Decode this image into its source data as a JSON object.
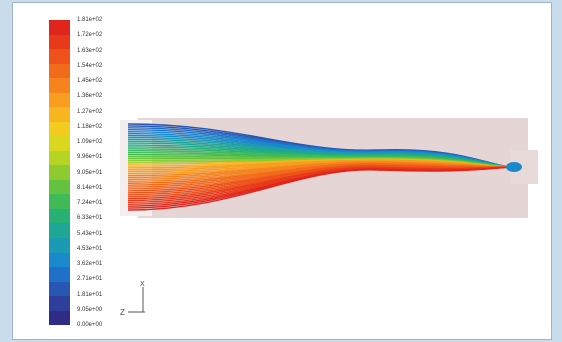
{
  "scale": {
    "labels": [
      "1.81e+02",
      "1.72e+02",
      "1.63e+02",
      "1.54e+02",
      "1.45e+02",
      "1.36e+02",
      "1.27e+02",
      "1.18e+02",
      "1.09e+02",
      "9.96e+01",
      "9.05e+01",
      "8.14e+01",
      "7.24e+01",
      "6.33e+01",
      "5.43e+01",
      "4.53e+01",
      "3.62e+01",
      "2.71e+01",
      "1.81e+01",
      "9.05e+00",
      "0.00e+00"
    ],
    "colors": [
      "#e0251c",
      "#e83a1a",
      "#ee521a",
      "#f26a1c",
      "#f5831e",
      "#f89d20",
      "#f7b51f",
      "#f3cc1d",
      "#d9d81e",
      "#b5d424",
      "#8ecb2f",
      "#63c23f",
      "#3fba57",
      "#28b174",
      "#1ea793",
      "#1a9bb3",
      "#1a89cc",
      "#1f70c9",
      "#2757b3",
      "#2d3f9a",
      "#2f2c85"
    ]
  },
  "axis_triad": {
    "z_label": "Z",
    "x_label": "X"
  },
  "colors": {
    "background": "#c9dceb",
    "domain_fill": "#e6d5d5",
    "inlet_fill": "#f4eeee"
  }
}
